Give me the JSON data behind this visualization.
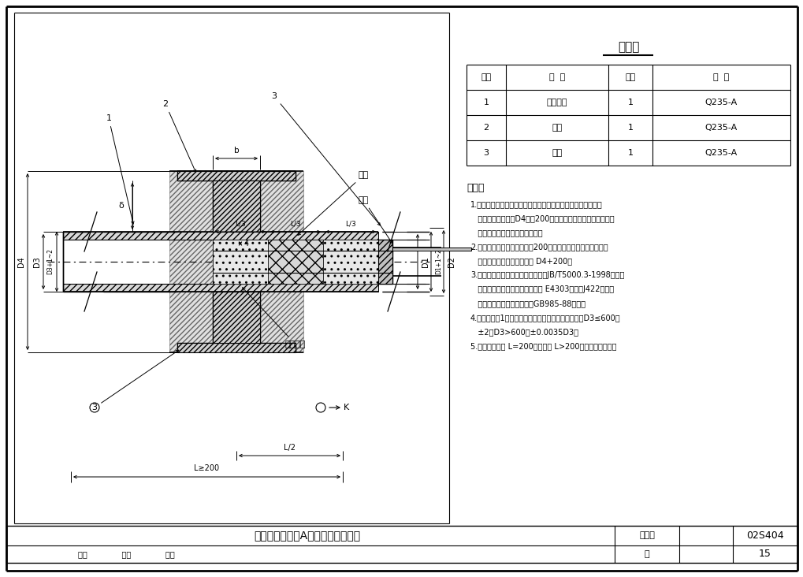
{
  "title": "材料表",
  "table_headers": [
    "序号",
    "名  称",
    "数量",
    "材  料"
  ],
  "table_rows": [
    [
      "1",
      "钢制套管",
      "1",
      "Q235-A"
    ],
    [
      "2",
      "翼环",
      "1",
      "Q235-A"
    ],
    [
      "3",
      "挡圈",
      "1",
      "Q235-A"
    ]
  ],
  "notes_title": "说明：",
  "notes": [
    "1.套管穿墙处如遇非混凝土墙壁时，应改用混凝土墙壁，其浇注",
    "   围应比翼环直径（D4）大200，而且必须将套管一次浇固于墙",
    "   内。套管内的填料应紧密捣实。",
    "2.穿管处混凝土墙厚应不小于200，否则应使墙壁一边或两边加",
    "   厚。加厚部分的直径至少为 D4+200。",
    "3.焊接结构尺寸公差与形位公差按照JB/T5000.3-1998执行。",
    "   焊接采用手工电弧焊，焊条型号 E4303，牌号J422。焊缝",
    "   坡口的基本形式与尺寸按照GB985-88执行。",
    "4.当套管（件1）采用卷制成型时，周长允许偏差为：D3≤600，",
    "   ±2，D3>600，±0.0035D3。",
    "5.套管的重量以 L=200计算，当 L>200时，应易行计算。"
  ],
  "footer_title": "刚性防水套管（A型）安装图（一）",
  "footer_label1": "图集号",
  "footer_val1": "02S404",
  "footer_label2": "页",
  "footer_val2": "15"
}
